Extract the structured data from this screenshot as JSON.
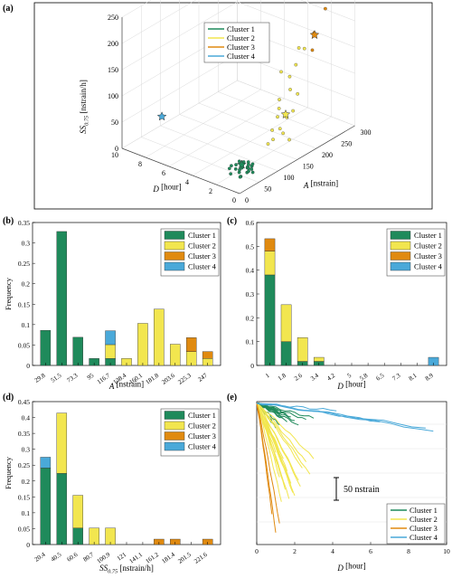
{
  "colors": {
    "cluster1": "#1f8a5b",
    "cluster2": "#f2e64f",
    "cluster3": "#e08a10",
    "cluster4": "#4aa9d9"
  },
  "legend": [
    "Cluster 1",
    "Cluster 2",
    "Cluster 3",
    "Cluster 4"
  ],
  "panels": {
    "a": "(a)",
    "b": "(b)",
    "c": "(c)",
    "d": "(d)",
    "e": "(e)"
  },
  "chart_data": [
    {
      "panel": "a",
      "type": "scatter",
      "axes": {
        "x": {
          "label": "A [nstrain]",
          "ticks": [
            "0",
            "50",
            "100",
            "150",
            "200",
            "250",
            "300"
          ],
          "range": [
            0,
            300
          ]
        },
        "y": {
          "label": "D [hour]",
          "ticks": [
            "0",
            "2",
            "4",
            "6",
            "8",
            "10"
          ],
          "range": [
            0,
            10
          ]
        },
        "z": {
          "label": "SS0.75 [nstrain/h]",
          "ticks": [
            "0",
            "50",
            "100",
            "150",
            "200",
            "250"
          ],
          "range": [
            0,
            250
          ]
        }
      },
      "series": [
        {
          "name": "Cluster 1",
          "points": [
            [
              40,
              1.2,
              5
            ],
            [
              45,
              1.5,
              8
            ],
            [
              50,
              1.0,
              10
            ],
            [
              55,
              1.8,
              6
            ],
            [
              60,
              1.3,
              12
            ],
            [
              38,
              2.0,
              4
            ],
            [
              65,
              1.1,
              9
            ],
            [
              70,
              1.6,
              7
            ],
            [
              48,
              0.8,
              15
            ],
            [
              58,
              2.2,
              11
            ],
            [
              75,
              1.4,
              8
            ],
            [
              42,
              1.7,
              14
            ],
            [
              62,
              0.9,
              6
            ],
            [
              52,
              2.4,
              10
            ],
            [
              68,
              1.2,
              13
            ],
            [
              80,
              1.5,
              9
            ],
            [
              35,
              1.1,
              7
            ],
            [
              72,
              2.0,
              12
            ],
            [
              56,
              1.6,
              18
            ],
            [
              46,
              1.3,
              20
            ],
            [
              64,
              1.9,
              5
            ],
            [
              54,
              1.0,
              16
            ],
            [
              78,
              1.8,
              11
            ],
            [
              44,
              2.3,
              9
            ],
            [
              66,
              1.4,
              15
            ],
            [
              30,
              1.0,
              40
            ]
          ],
          "star": [
            51.5,
            1.5,
            20
          ]
        },
        {
          "name": "Cluster 2",
          "points": [
            [
              120,
              1.5,
              30
            ],
            [
              140,
              1.8,
              45
            ],
            [
              160,
              2.0,
              60
            ],
            [
              180,
              2.5,
              80
            ],
            [
              200,
              1.6,
              90
            ],
            [
              150,
              1.2,
              40
            ],
            [
              170,
              2.2,
              70
            ],
            [
              190,
              1.9,
              100
            ],
            [
              210,
              2.6,
              110
            ],
            [
              130,
              1.4,
              35
            ],
            [
              175,
              1.7,
              55
            ],
            [
              220,
              2.4,
              130
            ],
            [
              240,
              2.8,
              150
            ],
            [
              145,
              1.3,
              50
            ],
            [
              160,
              1.0,
              25
            ],
            [
              200,
              3.0,
              120
            ],
            [
              185,
              1.5,
              65
            ],
            [
              230,
              2.0,
              160
            ]
          ],
          "star": [
            175,
            1.8,
            60
          ]
        },
        {
          "name": "Cluster 3",
          "points": [
            [
              220,
              1.0,
              170
            ],
            [
              240,
              1.5,
              190
            ],
            [
              260,
              1.2,
              230
            ]
          ],
          "star": [
            235,
            1.3,
            190
          ]
        },
        {
          "name": "Cluster 4",
          "points": [],
          "star": [
            70,
            8.9,
            40
          ]
        }
      ]
    },
    {
      "panel": "b",
      "type": "bar",
      "stacked": true,
      "categories": [
        "29.8",
        "51.5",
        "73.3",
        "95",
        "116.7",
        "138.4",
        "160.1",
        "181.8",
        "203.6",
        "225.3",
        "247"
      ],
      "xlabel": "A [nstrain]",
      "ylabel": "Frequency",
      "ylim": [
        0,
        0.35
      ],
      "yticks": [
        "0",
        "0.05",
        "0.1",
        "0.15",
        "0.2",
        "0.25",
        "0.3",
        "0.35"
      ],
      "series": [
        {
          "name": "Cluster 1",
          "values": [
            0.086,
            0.328,
            0.069,
            0.017,
            0.017,
            0,
            0,
            0,
            0,
            0,
            0
          ]
        },
        {
          "name": "Cluster 2",
          "values": [
            0,
            0,
            0,
            0,
            0.034,
            0.017,
            0.103,
            0.138,
            0.052,
            0.034,
            0.017
          ]
        },
        {
          "name": "Cluster 3",
          "values": [
            0,
            0,
            0,
            0,
            0,
            0,
            0,
            0,
            0,
            0.034,
            0.017
          ]
        },
        {
          "name": "Cluster 4",
          "values": [
            0,
            0,
            0,
            0,
            0.034,
            0,
            0,
            0,
            0,
            0,
            0
          ]
        }
      ]
    },
    {
      "panel": "c",
      "type": "bar",
      "stacked": true,
      "categories": [
        "1",
        "1.8",
        "2.6",
        "3.4",
        "4.2",
        "5",
        "5.8",
        "6.5",
        "7.3",
        "8.1",
        "8.9"
      ],
      "xlabel": "D [hour]",
      "ylabel": "",
      "ylim": [
        0,
        0.6
      ],
      "yticks": [
        "0",
        "0.1",
        "0.2",
        "0.3",
        "0.4",
        "0.5",
        "0.6"
      ],
      "series": [
        {
          "name": "Cluster 1",
          "values": [
            0.38,
            0.1,
            0.017,
            0.017,
            0,
            0,
            0,
            0,
            0,
            0,
            0
          ]
        },
        {
          "name": "Cluster 2",
          "values": [
            0.1,
            0.155,
            0.1,
            0.017,
            0,
            0,
            0,
            0,
            0,
            0,
            0
          ]
        },
        {
          "name": "Cluster 3",
          "values": [
            0.052,
            0,
            0,
            0,
            0,
            0,
            0,
            0,
            0,
            0,
            0
          ]
        },
        {
          "name": "Cluster 4",
          "values": [
            0,
            0,
            0,
            0,
            0,
            0,
            0,
            0,
            0,
            0,
            0.034
          ]
        }
      ]
    },
    {
      "panel": "d",
      "type": "bar",
      "stacked": true,
      "categories": [
        "20.4",
        "40.5",
        "60.6",
        "80.7",
        "100.9",
        "121",
        "141.1",
        "161.2",
        "181.4",
        "201.5",
        "221.6"
      ],
      "xlabel": "SS0.75 [nstrain/h]",
      "ylabel": "Frequency",
      "ylim": [
        0,
        0.45
      ],
      "yticks": [
        "0",
        "0.05",
        "0.1",
        "0.15",
        "0.2",
        "0.25",
        "0.3",
        "0.35",
        "0.4",
        "0.45"
      ],
      "series": [
        {
          "name": "Cluster 1",
          "values": [
            0.241,
            0.224,
            0.052,
            0,
            0,
            0,
            0,
            0,
            0,
            0,
            0
          ]
        },
        {
          "name": "Cluster 2",
          "values": [
            0,
            0.19,
            0.103,
            0.052,
            0.052,
            0,
            0,
            0,
            0,
            0,
            0
          ]
        },
        {
          "name": "Cluster 3",
          "values": [
            0,
            0,
            0,
            0,
            0,
            0,
            0,
            0.017,
            0.017,
            0,
            0.017
          ]
        },
        {
          "name": "Cluster 4",
          "values": [
            0.034,
            0,
            0,
            0,
            0,
            0,
            0,
            0,
            0,
            0,
            0
          ]
        }
      ]
    },
    {
      "panel": "e",
      "type": "line",
      "xlabel": "D [hour]",
      "xticks": [
        "0",
        "2",
        "4",
        "6",
        "8",
        "10"
      ],
      "xlim": [
        0,
        10
      ],
      "scale_bar": "50 nstrain",
      "series": [
        {
          "name": "Cluster 1",
          "curves": [
            [
              1.0,
              -10
            ],
            [
              1.1,
              -15
            ],
            [
              1.2,
              -20
            ],
            [
              1.3,
              -12
            ],
            [
              1.4,
              -25
            ],
            [
              1.5,
              -18
            ],
            [
              1.6,
              -30
            ],
            [
              1.8,
              -22
            ],
            [
              2.0,
              -28
            ],
            [
              2.2,
              -35
            ],
            [
              2.6,
              -26
            ],
            [
              3.0,
              -24
            ],
            [
              1.0,
              -40
            ],
            [
              1.2,
              -35
            ],
            [
              0.9,
              -32
            ]
          ]
        },
        {
          "name": "Cluster 2",
          "curves": [
            [
              1.0,
              -80
            ],
            [
              1.1,
              -100
            ],
            [
              1.2,
              -120
            ],
            [
              1.4,
              -90
            ],
            [
              1.5,
              -140
            ],
            [
              1.6,
              -110
            ],
            [
              1.8,
              -130
            ],
            [
              2.0,
              -150
            ],
            [
              2.2,
              -125
            ],
            [
              2.4,
              -105
            ],
            [
              2.6,
              -95
            ],
            [
              3.0,
              -90
            ],
            [
              0.8,
              -70
            ],
            [
              1.3,
              -160
            ],
            [
              1.9,
              -145
            ],
            [
              2.3,
              -135
            ],
            [
              2.8,
              -115
            ],
            [
              1.7,
              -155
            ]
          ]
        },
        {
          "name": "Cluster 3",
          "curves": [
            [
              0.8,
              -180
            ],
            [
              1.0,
              -210
            ],
            [
              1.2,
              -195
            ]
          ]
        },
        {
          "name": "Cluster 4",
          "curves": [
            [
              4.2,
              -12
            ],
            [
              6.5,
              -30
            ],
            [
              8.9,
              -40
            ],
            [
              9.3,
              -45
            ]
          ]
        }
      ]
    }
  ]
}
